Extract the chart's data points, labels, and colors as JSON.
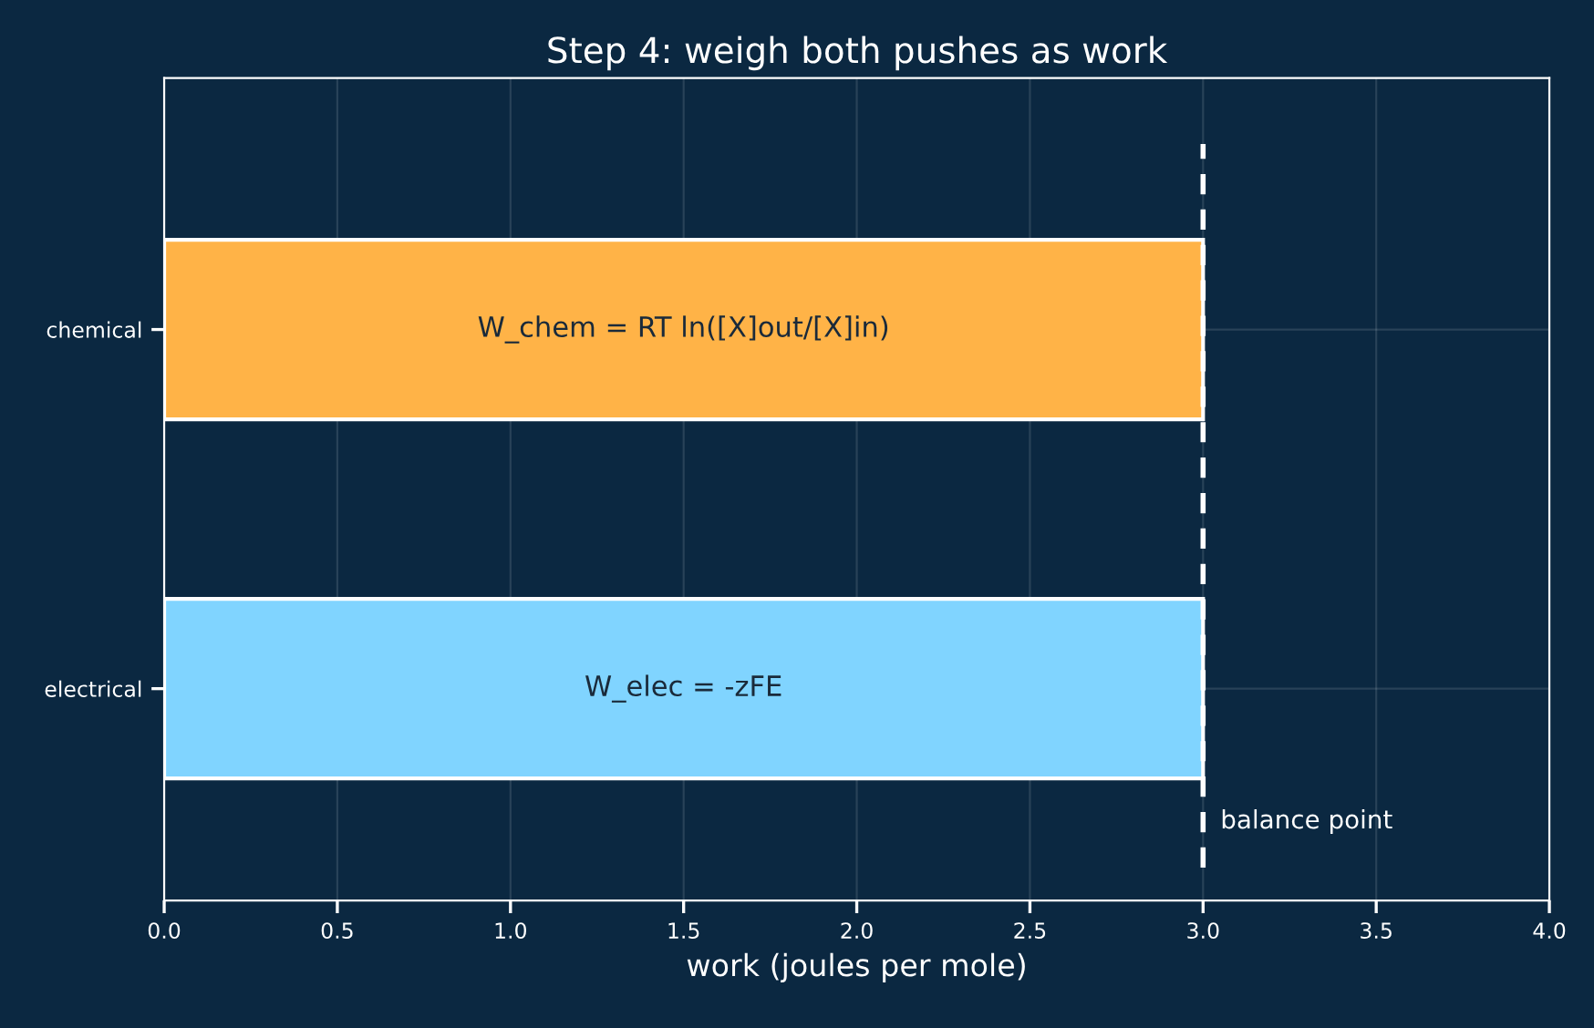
{
  "chart_data": {
    "type": "bar",
    "orientation": "horizontal",
    "title": "Step 4: weigh both pushes as work",
    "xlabel": "work (joules per mole)",
    "categories": [
      "chemical",
      "electrical"
    ],
    "values": [
      3.0,
      3.0
    ],
    "colors": [
      "#ffb347",
      "#80d4ff"
    ],
    "xlim": [
      0.0,
      4.0
    ],
    "xticks": [
      {
        "value": 0,
        "label": "0.0"
      },
      {
        "value": 0.5,
        "label": "0.5"
      },
      {
        "value": 1,
        "label": "1.0"
      },
      {
        "value": 1.5,
        "label": "1.5"
      },
      {
        "value": 2,
        "label": "2.0"
      },
      {
        "value": 2.5,
        "label": "2.5"
      },
      {
        "value": 3,
        "label": "3.0"
      },
      {
        "value": 3.5,
        "label": "3.5"
      },
      {
        "value": 4,
        "label": "4.0"
      }
    ],
    "grid": true,
    "annotations": [
      "W_chem = RT ln([X]out/[X]in)",
      "W_elec = -zFE"
    ],
    "ref_lines": [
      {
        "axis": "x",
        "value": 3.0,
        "label": "balance point",
        "color": "#ffffff",
        "line_style": "dashed"
      }
    ]
  }
}
